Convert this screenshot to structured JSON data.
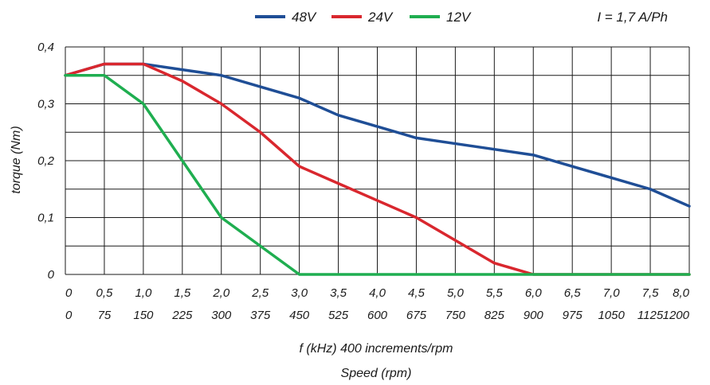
{
  "chart_data": {
    "type": "line",
    "xlabel": "f (kHz) 400 increments/rpm",
    "xlabel2": "Speed (rpm)",
    "ylabel": "torque (Nm)",
    "annotation": "I = 1,7 A/Ph",
    "xlim": [
      0,
      8
    ],
    "ylim": [
      0,
      0.4
    ],
    "x_ticks": [
      0,
      0.5,
      1,
      1.5,
      2,
      2.5,
      3,
      3.5,
      4,
      4.5,
      5,
      5.5,
      6,
      6.5,
      7,
      7.5,
      8
    ],
    "x_tick_labels": [
      "0",
      "0,5",
      "1,0",
      "1,5",
      "2,0",
      "2,5",
      "3,0",
      "3,5",
      "4,0",
      "4,5",
      "5,0",
      "5,5",
      "6,0",
      "6,5",
      "7,0",
      "7,5",
      "8,0"
    ],
    "x_tick_labels_rpm": [
      "0",
      "75",
      "150",
      "225",
      "300",
      "375",
      "450",
      "525",
      "600",
      "675",
      "750",
      "825",
      "900",
      "975",
      "1050",
      "1125",
      "1200"
    ],
    "y_ticks": [
      0,
      0.1,
      0.2,
      0.3,
      0.4
    ],
    "y_tick_labels": [
      "0",
      "0,1",
      "0,2",
      "0,3",
      "0,4"
    ],
    "grid": true,
    "legend_position": "top",
    "x": [
      0,
      0.5,
      1,
      1.5,
      2,
      2.5,
      3,
      3.5,
      4,
      4.5,
      5,
      5.5,
      6,
      6.5,
      7,
      7.5,
      8
    ],
    "series": [
      {
        "name": "48V",
        "color": "#1f4e96",
        "values": [
          0.35,
          0.37,
          0.37,
          0.36,
          0.35,
          0.33,
          0.31,
          0.28,
          0.26,
          0.24,
          0.23,
          0.22,
          0.21,
          0.19,
          0.17,
          0.15,
          0.12
        ]
      },
      {
        "name": "24V",
        "color": "#d9272e",
        "values": [
          0.35,
          0.37,
          0.37,
          0.34,
          0.3,
          0.25,
          0.19,
          0.16,
          0.13,
          0.1,
          0.06,
          0.02,
          0,
          0,
          0,
          0,
          0
        ]
      },
      {
        "name": "12V",
        "color": "#1fae50",
        "values": [
          0.35,
          0.35,
          0.3,
          0.2,
          0.1,
          0.05,
          0,
          0,
          0,
          0,
          0,
          0,
          0,
          0,
          0,
          0,
          0
        ]
      }
    ]
  }
}
